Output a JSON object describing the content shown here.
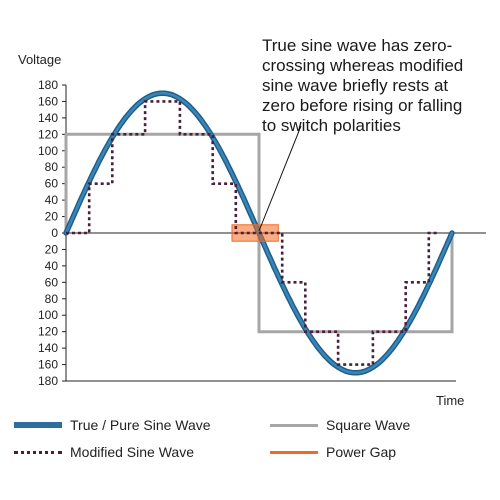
{
  "chart_data": {
    "type": "line",
    "title": "",
    "ylabel": "Voltage",
    "xlabel": "Time",
    "ylim": [
      -180,
      180
    ],
    "xlim": [
      0,
      1
    ],
    "y_tick_labels": [
      "180",
      "160",
      "140",
      "120",
      "100",
      "80",
      "60",
      "40",
      "20",
      "0",
      "20",
      "40",
      "60",
      "80",
      "100",
      "120",
      "140",
      "160",
      "180"
    ],
    "y_tick_values": [
      180,
      160,
      140,
      120,
      100,
      80,
      60,
      40,
      20,
      0,
      -20,
      -40,
      -60,
      -80,
      -100,
      -120,
      -140,
      -160,
      -180
    ],
    "series": [
      {
        "name": "True / Pure Sine Wave",
        "kind": "sine",
        "amplitude": 170,
        "period": 1,
        "color": "#2d6e9e"
      },
      {
        "name": "Square Wave",
        "kind": "step",
        "color": "#a6a6a6",
        "x": [
          0,
          0,
          0.5,
          0.5,
          1,
          1
        ],
        "y": [
          0,
          120,
          120,
          -120,
          -120,
          0
        ]
      },
      {
        "name": "Modified Sine Wave",
        "kind": "step",
        "color": "#4a1f3a",
        "x": [
          0,
          0.06,
          0.06,
          0.12,
          0.12,
          0.205,
          0.205,
          0.295,
          0.295,
          0.38,
          0.38,
          0.44,
          0.44,
          0.5,
          0.5,
          0.56,
          0.56,
          0.62,
          0.62,
          0.705,
          0.705,
          0.795,
          0.795,
          0.88,
          0.88,
          0.94,
          0.94,
          0.96
        ],
        "y": [
          0,
          0,
          60,
          60,
          120,
          120,
          160,
          160,
          120,
          120,
          60,
          60,
          0,
          0,
          0,
          0,
          -60,
          -60,
          -120,
          -120,
          -160,
          -160,
          -120,
          -120,
          -60,
          -60,
          0,
          0
        ]
      },
      {
        "name": "Power Gap",
        "kind": "region",
        "color": "#f26a21",
        "x_range": [
          0.43,
          0.55
        ],
        "y_range": [
          -10,
          10
        ]
      }
    ],
    "annotation": {
      "lines": [
        "True sine wave has zero-",
        "crossing whereas modified",
        "sine wave briefly rests at",
        "zero before rising or falling",
        "to switch polarities"
      ]
    }
  }
}
